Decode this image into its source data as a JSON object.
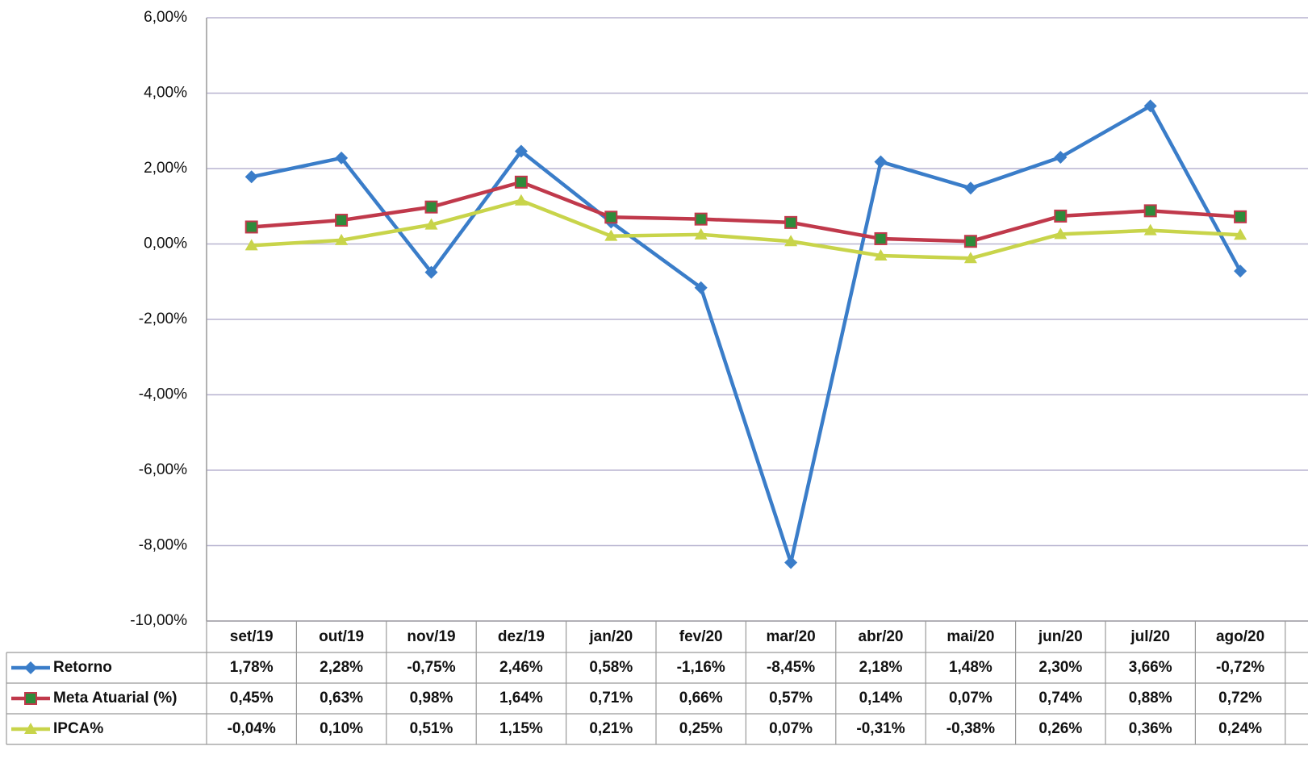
{
  "chart_data": {
    "type": "line",
    "categories": [
      "set/19",
      "out/19",
      "nov/19",
      "dez/19",
      "jan/20",
      "fev/20",
      "mar/20",
      "abr/20",
      "mai/20",
      "jun/20",
      "jul/20",
      "ago/20"
    ],
    "ylim": [
      -10,
      6
    ],
    "yticks": [
      {
        "value": -10,
        "label": "-10,00%"
      },
      {
        "value": -8,
        "label": "-8,00%"
      },
      {
        "value": -6,
        "label": "-6,00%"
      },
      {
        "value": -4,
        "label": "-4,00%"
      },
      {
        "value": -2,
        "label": "-2,00%"
      },
      {
        "value": 0,
        "label": "0,00%"
      },
      {
        "value": 2,
        "label": "2,00%"
      },
      {
        "value": 4,
        "label": "4,00%"
      },
      {
        "value": 6,
        "label": "6,00%"
      }
    ],
    "grid": true,
    "series": [
      {
        "name": "Retorno",
        "color": "#3a7dc9",
        "marker": "diamond",
        "marker_color": "#3a7dc9",
        "values": [
          1.78,
          2.28,
          -0.75,
          2.46,
          0.58,
          -1.16,
          -8.45,
          2.18,
          1.48,
          2.3,
          3.66,
          -0.72
        ],
        "value_labels": [
          "1,78%",
          "2,28%",
          "-0,75%",
          "2,46%",
          "0,58%",
          "-1,16%",
          "-8,45%",
          "2,18%",
          "1,48%",
          "2,30%",
          "3,66%",
          "-0,72%"
        ]
      },
      {
        "name": "Meta Atuarial (%)",
        "color": "#c0394b",
        "marker": "square",
        "marker_color": "#2e8b3a",
        "values": [
          0.45,
          0.63,
          0.98,
          1.64,
          0.71,
          0.66,
          0.57,
          0.14,
          0.07,
          0.74,
          0.88,
          0.72
        ],
        "value_labels": [
          "0,45%",
          "0,63%",
          "0,98%",
          "1,64%",
          "0,71%",
          "0,66%",
          "0,57%",
          "0,14%",
          "0,07%",
          "0,74%",
          "0,88%",
          "0,72%"
        ]
      },
      {
        "name": "IPCA%",
        "color": "#c8d44a",
        "marker": "triangle",
        "marker_color": "#c8d44a",
        "values": [
          -0.04,
          0.1,
          0.51,
          1.15,
          0.21,
          0.25,
          0.07,
          -0.31,
          -0.38,
          0.26,
          0.36,
          0.24
        ],
        "value_labels": [
          "-0,04%",
          "0,10%",
          "0,51%",
          "1,15%",
          "0,21%",
          "0,25%",
          "0,07%",
          "-0,31%",
          "-0,38%",
          "0,26%",
          "0,36%",
          "0,24%"
        ]
      }
    ]
  }
}
